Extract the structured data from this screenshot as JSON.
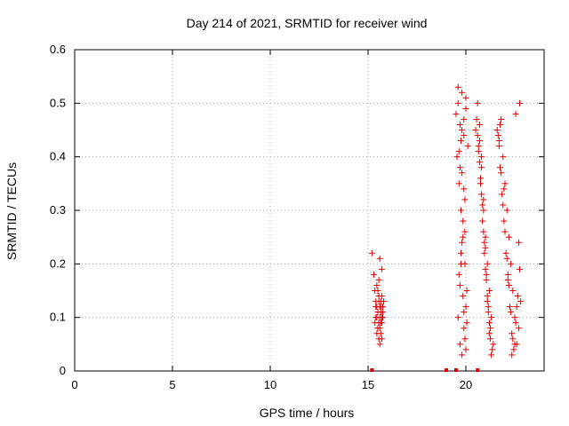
{
  "chart_data": {
    "type": "scatter",
    "title": "Day 214 of 2021, SRMTID for receiver wind",
    "xlabel": "GPS time / hours",
    "ylabel": "SRMTID / TECUs",
    "xlim": [
      0,
      24
    ],
    "ylim": [
      0,
      0.6
    ],
    "xticks": [
      0,
      5,
      10,
      15,
      20
    ],
    "xtick_labels": [
      "0",
      "5",
      "10",
      "15",
      "20"
    ],
    "yticks": [
      0,
      0.1,
      0.2,
      0.3,
      0.4,
      0.5,
      0.6
    ],
    "ytick_labels": [
      "0",
      "0.1",
      "0.2",
      "0.3",
      "0.4",
      "0.5",
      "0.6"
    ],
    "grid": true,
    "marker": "+",
    "color": "#dd0000",
    "series": [
      {
        "name": "SRMTID",
        "x": [
          15.2,
          15.3,
          15.35,
          15.4,
          15.45,
          15.5,
          15.55,
          15.6,
          15.65,
          15.7,
          15.75,
          15.8,
          15.45,
          15.55,
          15.6,
          15.7,
          15.4,
          15.5,
          15.65,
          15.75,
          15.5,
          15.6,
          15.7,
          15.45,
          15.55,
          15.65,
          15.6,
          15.7,
          15.5,
          15.4,
          15.65,
          15.55,
          15.75,
          15.45,
          15.6,
          15.7,
          15.5,
          15.55,
          15.65,
          15.35,
          19.5,
          19.6,
          19.7,
          19.8,
          19.9,
          20.0,
          20.1,
          19.55,
          19.65,
          19.75,
          19.85,
          19.95,
          20.05,
          19.6,
          19.7,
          19.8,
          19.9,
          20.0,
          19.65,
          19.75,
          19.85,
          19.95,
          19.7,
          19.8,
          19.9,
          20.0,
          19.6,
          19.75,
          19.85,
          19.95,
          20.05,
          19.7,
          19.8,
          19.9,
          19.65,
          19.8,
          19.95,
          19.75,
          19.9,
          20.0,
          20.5,
          20.6,
          20.7,
          20.8,
          20.9,
          21.0,
          21.1,
          21.2,
          21.3,
          21.4,
          20.55,
          20.65,
          20.75,
          20.85,
          20.95,
          21.05,
          21.15,
          21.25,
          21.35,
          20.6,
          20.7,
          20.8,
          20.9,
          21.0,
          21.1,
          21.2,
          21.3,
          20.65,
          20.75,
          20.85,
          20.95,
          21.05,
          21.15,
          21.25,
          20.7,
          20.8,
          20.9,
          21.0,
          21.1,
          21.2,
          21.6,
          21.7,
          21.8,
          21.9,
          22.0,
          22.1,
          22.2,
          22.3,
          22.4,
          22.5,
          22.6,
          22.7,
          22.8,
          21.65,
          21.75,
          21.85,
          21.95,
          22.05,
          22.15,
          22.25,
          22.35,
          22.45,
          22.55,
          22.65,
          22.75,
          21.7,
          21.8,
          21.9,
          22.0,
          22.1,
          22.2,
          22.3,
          22.4,
          22.5,
          22.6,
          22.7,
          21.75,
          21.95,
          22.15,
          22.35,
          22.55,
          22.75
        ],
        "y": [
          0.22,
          0.18,
          0.15,
          0.12,
          0.1,
          0.08,
          0.06,
          0.05,
          0.07,
          0.09,
          0.11,
          0.13,
          0.16,
          0.14,
          0.12,
          0.1,
          0.13,
          0.11,
          0.09,
          0.12,
          0.08,
          0.1,
          0.14,
          0.07,
          0.09,
          0.11,
          0.21,
          0.19,
          0.15,
          0.1,
          0.13,
          0.17,
          0.1,
          0.12,
          0.08,
          0.06,
          0.11,
          0.13,
          0.12,
          0.09,
          0.48,
          0.5,
          0.46,
          0.52,
          0.44,
          0.49,
          0.42,
          0.4,
          0.35,
          0.3,
          0.25,
          0.2,
          0.15,
          0.1,
          0.05,
          0.03,
          0.08,
          0.12,
          0.18,
          0.22,
          0.28,
          0.32,
          0.38,
          0.45,
          0.47,
          0.51,
          0.53,
          0.43,
          0.14,
          0.06,
          0.09,
          0.16,
          0.24,
          0.34,
          0.41,
          0.37,
          0.26,
          0.2,
          0.11,
          0.04,
          0.45,
          0.5,
          0.43,
          0.38,
          0.3,
          0.25,
          0.2,
          0.15,
          0.1,
          0.05,
          0.47,
          0.41,
          0.35,
          0.28,
          0.22,
          0.17,
          0.12,
          0.08,
          0.04,
          0.44,
          0.39,
          0.33,
          0.26,
          0.19,
          0.13,
          0.07,
          0.03,
          0.42,
          0.36,
          0.31,
          0.24,
          0.18,
          0.11,
          0.06,
          0.46,
          0.4,
          0.32,
          0.23,
          0.14,
          0.09,
          0.45,
          0.42,
          0.47,
          0.4,
          0.35,
          0.3,
          0.25,
          0.2,
          0.15,
          0.1,
          0.05,
          0.08,
          0.13,
          0.44,
          0.38,
          0.33,
          0.28,
          0.22,
          0.17,
          0.12,
          0.07,
          0.04,
          0.09,
          0.14,
          0.19,
          0.43,
          0.37,
          0.31,
          0.26,
          0.21,
          0.16,
          0.11,
          0.06,
          0.05,
          0.12,
          0.24,
          0.46,
          0.34,
          0.18,
          0.03,
          0.48,
          0.5
        ]
      }
    ],
    "zero_markers": [
      15.2,
      19.0,
      19.5,
      20.6
    ]
  }
}
